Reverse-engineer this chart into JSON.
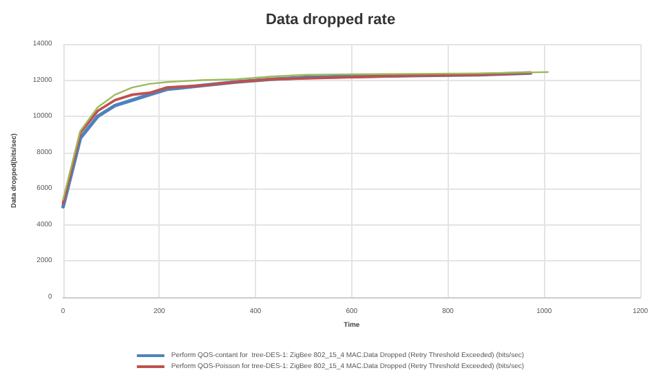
{
  "chart_data": {
    "type": "line",
    "title": "Data dropped rate",
    "xlabel": "Time",
    "ylabel": "Data dropped(bits/sec)",
    "xlim": [
      0,
      1200
    ],
    "xticks": [
      0,
      200,
      400,
      600,
      800,
      1000,
      1200
    ],
    "ylim": [
      0,
      14000
    ],
    "yticks": [
      0,
      2000,
      4000,
      6000,
      8000,
      10000,
      12000,
      14000
    ],
    "grid": true,
    "legend": "bottom",
    "marker": "none",
    "line_style": "solid",
    "series": [
      {
        "name": "Perform QOS-contant for  tree-DES-1: ZigBee 802_15_4 MAC.Data Dropped (Retry Threshold Exceeded) (bits/sec)",
        "color": "#4f81bd",
        "x": [
          0,
          36,
          72,
          108,
          144,
          180,
          216,
          288,
          360,
          432,
          504,
          576,
          720,
          864,
          972
        ],
        "values": [
          5000,
          8800,
          10000,
          10600,
          10900,
          11200,
          11500,
          11700,
          11900,
          12050,
          12150,
          12200,
          12250,
          12300,
          12400
        ]
      },
      {
        "name": "Perform QOS-Poisson for tree-DES-1: ZigBee 802_15_4 MAC.Data Dropped (Retry Threshold Exceeded) (bits/sec)",
        "color": "#c0504d",
        "x": [
          0,
          36,
          72,
          108,
          144,
          180,
          216,
          288,
          360,
          432,
          504,
          576,
          720,
          864,
          972
        ],
        "values": [
          5200,
          9100,
          10300,
          10900,
          11200,
          11300,
          11600,
          11700,
          11900,
          12050,
          12100,
          12150,
          12250,
          12300,
          12400
        ]
      },
      {
        "color": "#9bbb59",
        "x": [
          0,
          36,
          72,
          108,
          144,
          180,
          216,
          288,
          360,
          432,
          504,
          576,
          720,
          864,
          1008
        ],
        "values": [
          5400,
          9200,
          10500,
          11200,
          11600,
          11800,
          11900,
          12000,
          12050,
          12200,
          12300,
          12320,
          12350,
          12380,
          12450
        ]
      }
    ]
  }
}
